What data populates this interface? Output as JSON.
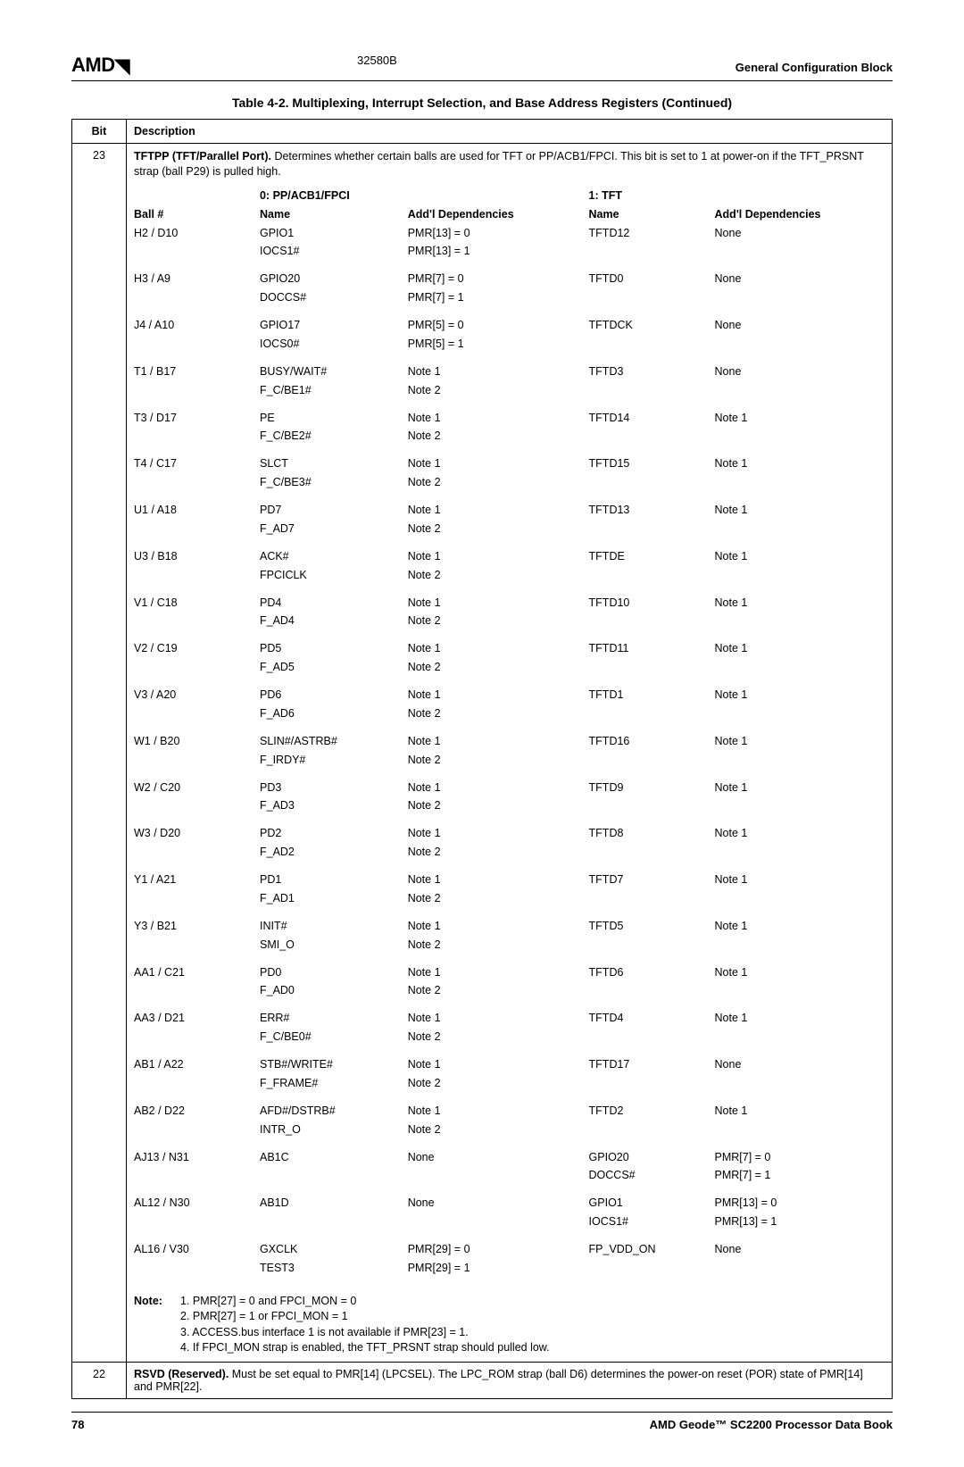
{
  "header": {
    "logo": "AMD",
    "docnum": "32580B",
    "section": "General Configuration Block"
  },
  "table_title": "Table 4-2.  Multiplexing, Interrupt Selection, and Base Address Registers (Continued)",
  "hdr": {
    "bit": "Bit",
    "desc": "Description"
  },
  "bit23": {
    "num": "23",
    "intro_bold": "TFTPP (TFT/Parallel Port).",
    "intro_rest": " Determines whether certain balls are used for TFT or PP/ACB1/FPCI. This bit is set to 1 at power-on if the TFT_PRSNT strap (ball P29) is pulled high.",
    "col_ball": "Ball #",
    "col_0a": "0: PP/ACB1/FPCI",
    "col_0b": "Name",
    "col_dep0": "Add'l Dependencies",
    "col_1a": "1: TFT",
    "col_1b": "Name",
    "col_dep1": "Add'l Dependencies",
    "rows": [
      {
        "ball": "H2 / D10",
        "n0a": "GPIO1",
        "n0b": "IOCS1#",
        "d0a": "PMR[13] = 0",
        "d0b": "PMR[13] = 1",
        "n1": "TFTD12",
        "d1a": "None",
        "d1b": ""
      },
      {
        "ball": "H3 / A9",
        "n0a": "GPIO20",
        "n0b": "DOCCS#",
        "d0a": "PMR[7] = 0",
        "d0b": "PMR[7] = 1",
        "n1": "TFTD0",
        "d1a": "None",
        "d1b": ""
      },
      {
        "ball": "J4 / A10",
        "n0a": "GPIO17",
        "n0b": "IOCS0#",
        "d0a": "PMR[5] = 0",
        "d0b": "PMR[5] = 1",
        "n1": "TFTDCK",
        "d1a": "None",
        "d1b": ""
      },
      {
        "ball": "T1 / B17",
        "n0a": "BUSY/WAIT#",
        "n0b": "F_C/BE1#",
        "d0a": "Note 1",
        "d0b": "Note 2",
        "n1": "TFTD3",
        "d1a": "None",
        "d1b": ""
      },
      {
        "ball": "T3 / D17",
        "n0a": "PE",
        "n0b": "F_C/BE2#",
        "d0a": "Note 1",
        "d0b": "Note 2",
        "n1": "TFTD14",
        "d1a": "Note 1",
        "d1b": ""
      },
      {
        "ball": "T4 / C17",
        "n0a": "SLCT",
        "n0b": "F_C/BE3#",
        "d0a": "Note 1",
        "d0b": "Note 2",
        "n1": "TFTD15",
        "d1a": "Note 1",
        "d1b": ""
      },
      {
        "ball": "U1 / A18",
        "n0a": "PD7",
        "n0b": "F_AD7",
        "d0a": "Note 1",
        "d0b": "Note 2",
        "n1": "TFTD13",
        "d1a": "Note 1",
        "d1b": ""
      },
      {
        "ball": "U3 / B18",
        "n0a": "ACK#",
        "n0b": "FPCICLK",
        "d0a": "Note 1",
        "d0b": "Note 2",
        "n1": "TFTDE",
        "d1a": "Note 1",
        "d1b": ""
      },
      {
        "ball": "V1 / C18",
        "n0a": "PD4",
        "n0b": "F_AD4",
        "d0a": "Note 1",
        "d0b": "Note 2",
        "n1": "TFTD10",
        "d1a": "Note 1",
        "d1b": ""
      },
      {
        "ball": "V2 / C19",
        "n0a": "PD5",
        "n0b": "F_AD5",
        "d0a": "Note 1",
        "d0b": "Note 2",
        "n1": "TFTD11",
        "d1a": "Note 1",
        "d1b": ""
      },
      {
        "ball": "V3 / A20",
        "n0a": "PD6",
        "n0b": "F_AD6",
        "d0a": "Note 1",
        "d0b": "Note 2",
        "n1": "TFTD1",
        "d1a": "Note 1",
        "d1b": ""
      },
      {
        "ball": "W1 / B20",
        "n0a": "SLIN#/ASTRB#",
        "n0b": "F_IRDY#",
        "d0a": "Note 1",
        "d0b": "Note 2",
        "n1": "TFTD16",
        "d1a": "Note 1",
        "d1b": ""
      },
      {
        "ball": "W2 / C20",
        "n0a": "PD3",
        "n0b": "F_AD3",
        "d0a": "Note 1",
        "d0b": "Note 2",
        "n1": "TFTD9",
        "d1a": "Note 1",
        "d1b": ""
      },
      {
        "ball": "W3 / D20",
        "n0a": "PD2",
        "n0b": "F_AD2",
        "d0a": "Note 1",
        "d0b": "Note 2",
        "n1": "TFTD8",
        "d1a": "Note 1",
        "d1b": ""
      },
      {
        "ball": "Y1 / A21",
        "n0a": "PD1",
        "n0b": "F_AD1",
        "d0a": "Note 1",
        "d0b": "Note 2",
        "n1": "TFTD7",
        "d1a": "Note 1",
        "d1b": ""
      },
      {
        "ball": "Y3 / B21",
        "n0a": "INIT#",
        "n0b": "SMI_O",
        "d0a": "Note 1",
        "d0b": "Note 2",
        "n1": "TFTD5",
        "d1a": "Note 1",
        "d1b": ""
      },
      {
        "ball": "AA1 / C21",
        "n0a": "PD0",
        "n0b": "F_AD0",
        "d0a": "Note 1",
        "d0b": "Note 2",
        "n1": "TFTD6",
        "d1a": "Note 1",
        "d1b": ""
      },
      {
        "ball": "AA3 / D21",
        "n0a": "ERR#",
        "n0b": "F_C/BE0#",
        "d0a": "Note 1",
        "d0b": "Note 2",
        "n1": "TFTD4",
        "d1a": "Note 1",
        "d1b": ""
      },
      {
        "ball": "AB1 / A22",
        "n0a": "STB#/WRITE#",
        "n0b": "F_FRAME#",
        "d0a": "Note 1",
        "d0b": "Note 2",
        "n1": "TFTD17",
        "d1a": "None",
        "d1b": ""
      },
      {
        "ball": "AB2 / D22",
        "n0a": "AFD#/DSTRB#",
        "n0b": "INTR_O",
        "d0a": "Note 1",
        "d0b": "Note 2",
        "n1": "TFTD2",
        "d1a": "Note 1",
        "d1b": ""
      },
      {
        "ball": "AJ13 / N31",
        "n0a": "AB1C",
        "n0b": "",
        "d0a": "None",
        "d0b": "",
        "n1": "GPIO20",
        "n1b": "DOCCS#",
        "d1a": "PMR[7] = 0",
        "d1b": "PMR[7] = 1"
      },
      {
        "ball": "AL12 / N30",
        "n0a": "AB1D",
        "n0b": "",
        "d0a": "None",
        "d0b": "",
        "n1": "GPIO1",
        "n1b": "IOCS1#",
        "d1a": "PMR[13] = 0",
        "d1b": "PMR[13] = 1"
      },
      {
        "ball": "AL16 / V30",
        "n0a": "GXCLK",
        "n0b": "TEST3",
        "d0a": "PMR[29] = 0",
        "d0b": "PMR[29] = 1",
        "n1": "FP_VDD_ON",
        "d1a": "None",
        "d1b": ""
      }
    ],
    "note_label": "Note:",
    "notes": [
      "1. PMR[27] = 0 and FPCI_MON = 0",
      "2. PMR[27] = 1 or FPCI_MON = 1",
      "3. ACCESS.bus interface 1 is not available if PMR[23] = 1.",
      "4. If FPCI_MON strap is enabled, the TFT_PRSNT strap should pulled low."
    ]
  },
  "bit22": {
    "num": "22",
    "bold": "RSVD (Reserved).",
    "rest": " Must be set equal to PMR[14] (LPCSEL). The LPC_ROM strap (ball D6) determines the power-on reset (POR) state of PMR[14] and PMR[22]."
  },
  "footer": {
    "page": "78",
    "book": "AMD Geode™ SC2200  Processor Data Book"
  }
}
